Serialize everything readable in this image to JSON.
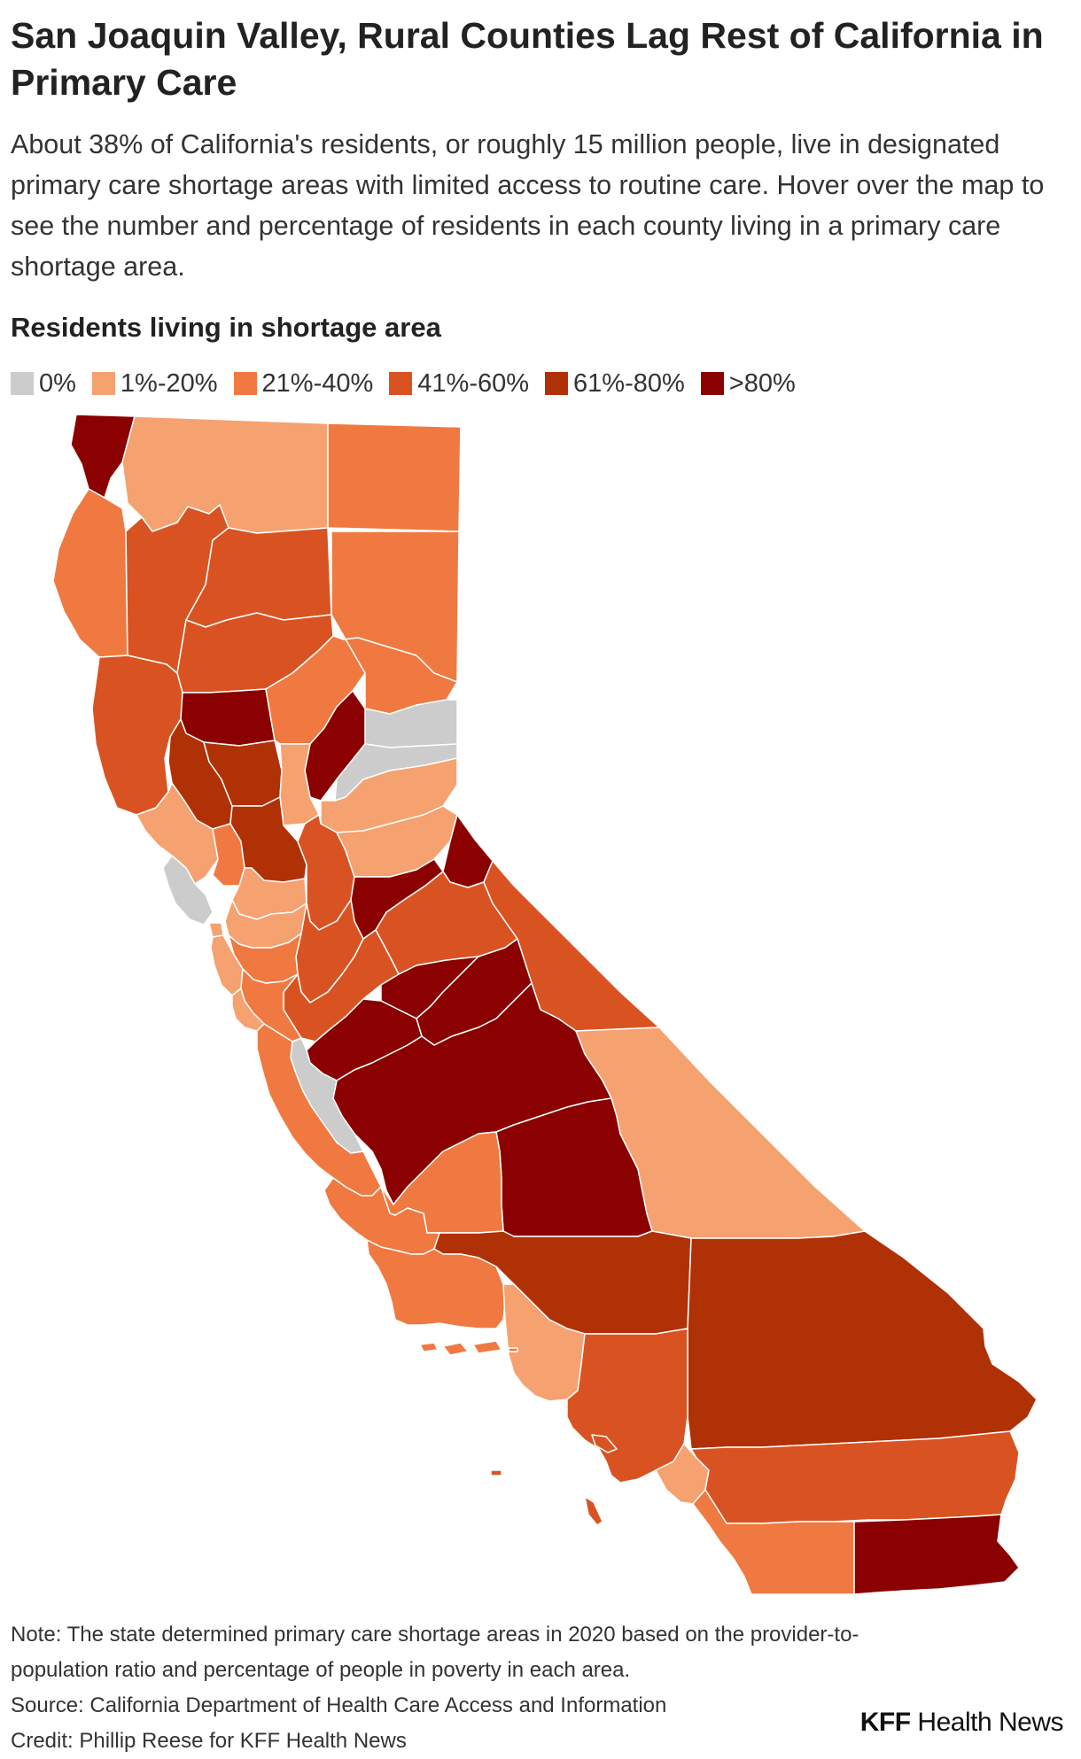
{
  "title": "San Joaquin Valley, Rural Counties Lag Rest of California in Primary Care",
  "description": "About 38% of California's residents, or roughly 15 million people, live in designated primary care shortage areas with limited access to routine care. Hover over the map to see the number and percentage of residents in each county living in a primary care shortage area.",
  "legend": {
    "title": "Residents living in shortage area",
    "items": [
      {
        "label": "0%",
        "color": "#cccccc"
      },
      {
        "label": "1%-20%",
        "color": "#f6a170"
      },
      {
        "label": "21%-40%",
        "color": "#f07941"
      },
      {
        "label": "41%-60%",
        "color": "#d95322"
      },
      {
        "label": "61%-80%",
        "color": "#b03106"
      },
      {
        "label": ">80%",
        "color": "#8b0000"
      }
    ]
  },
  "footer": {
    "note": "Note: The state determined primary care shortage areas in 2020 based on the provider-to-population ratio and percentage of people in poverty in each area.",
    "source": "Source: California Department of Health Care Access and Information",
    "credit": "Credit: Phillip Reese for KFF Health News"
  },
  "logo": {
    "kff": "KFF",
    "rest": " Health News"
  }
}
